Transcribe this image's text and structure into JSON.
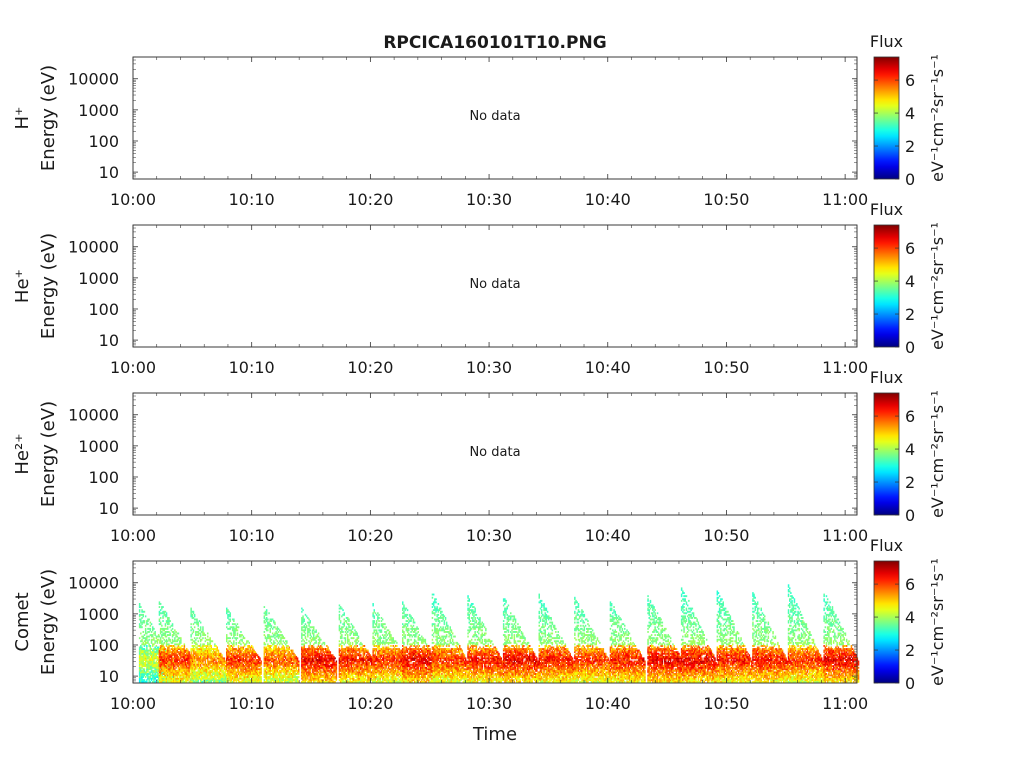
{
  "title": "RPCICA160101T10.PNG",
  "xlabel": "Time",
  "time_ticks": [
    "10:00",
    "10:10",
    "10:20",
    "10:30",
    "10:40",
    "10:50",
    "11:00"
  ],
  "energy_ticks": [
    "10000",
    "1000",
    "100",
    "10"
  ],
  "colorbar": {
    "title": "Flux",
    "units": "eV⁻¹cm⁻²sr⁻¹s⁻¹",
    "ticks": [
      "0",
      "2",
      "4",
      "6"
    ],
    "range": [
      0,
      7.4
    ],
    "colormap": "jet"
  },
  "chart_data": [
    {
      "type": "heatmap",
      "species": "H⁺",
      "ylabel": "Energy (eV)",
      "annotation": "No data",
      "xlim": [
        "10:00",
        "11:01"
      ],
      "ylim_eV": [
        6,
        50000
      ],
      "y_scale": "log",
      "bursts": []
    },
    {
      "type": "heatmap",
      "species": "He⁺",
      "ylabel": "Energy (eV)",
      "annotation": "No data",
      "xlim": [
        "10:00",
        "11:01"
      ],
      "ylim_eV": [
        6,
        50000
      ],
      "y_scale": "log",
      "bursts": []
    },
    {
      "type": "heatmap",
      "species": "He²⁺",
      "ylabel": "Energy (eV)",
      "annotation": "No data",
      "xlim": [
        "10:00",
        "11:01"
      ],
      "ylim_eV": [
        6,
        50000
      ],
      "y_scale": "log",
      "bursts": []
    },
    {
      "type": "heatmap",
      "species": "Comet",
      "ylabel": "Energy (eV)",
      "annotation": "",
      "xlim": [
        "10:00",
        "11:01"
      ],
      "ylim_eV": [
        6,
        50000
      ],
      "y_scale": "log",
      "note": "Repeating energy-time dispersion bursts; peak flux near 20-60 eV",
      "bursts": [
        {
          "start": "10:00:30",
          "max_eV": 2000,
          "peak_flux": 5.2
        },
        {
          "start": "10:02:10",
          "max_eV": 2500,
          "peak_flux": 6.8
        },
        {
          "start": "10:04:50",
          "max_eV": 1500,
          "peak_flux": 6.2
        },
        {
          "start": "10:07:50",
          "max_eV": 1500,
          "peak_flux": 6.8
        },
        {
          "start": "10:11:00",
          "max_eV": 1800,
          "peak_flux": 6.5
        },
        {
          "start": "10:14:10",
          "max_eV": 1500,
          "peak_flux": 7.2
        },
        {
          "start": "10:17:20",
          "max_eV": 2000,
          "peak_flux": 7.0
        },
        {
          "start": "10:20:10",
          "max_eV": 2000,
          "peak_flux": 6.8
        },
        {
          "start": "10:22:40",
          "max_eV": 2500,
          "peak_flux": 7.2
        },
        {
          "start": "10:25:10",
          "max_eV": 5000,
          "peak_flux": 6.8
        },
        {
          "start": "10:28:10",
          "max_eV": 4000,
          "peak_flux": 7.0
        },
        {
          "start": "10:31:10",
          "max_eV": 3500,
          "peak_flux": 7.2
        },
        {
          "start": "10:34:10",
          "max_eV": 4000,
          "peak_flux": 7.0
        },
        {
          "start": "10:37:10",
          "max_eV": 3500,
          "peak_flux": 6.8
        },
        {
          "start": "10:40:10",
          "max_eV": 2500,
          "peak_flux": 7.0
        },
        {
          "start": "10:43:20",
          "max_eV": 4000,
          "peak_flux": 7.2
        },
        {
          "start": "10:46:10",
          "max_eV": 8000,
          "peak_flux": 7.2
        },
        {
          "start": "10:49:10",
          "max_eV": 6000,
          "peak_flux": 7.0
        },
        {
          "start": "10:52:10",
          "max_eV": 5000,
          "peak_flux": 7.0
        },
        {
          "start": "10:55:10",
          "max_eV": 8000,
          "peak_flux": 6.8
        },
        {
          "start": "10:58:10",
          "max_eV": 6000,
          "peak_flux": 7.2
        }
      ]
    }
  ]
}
